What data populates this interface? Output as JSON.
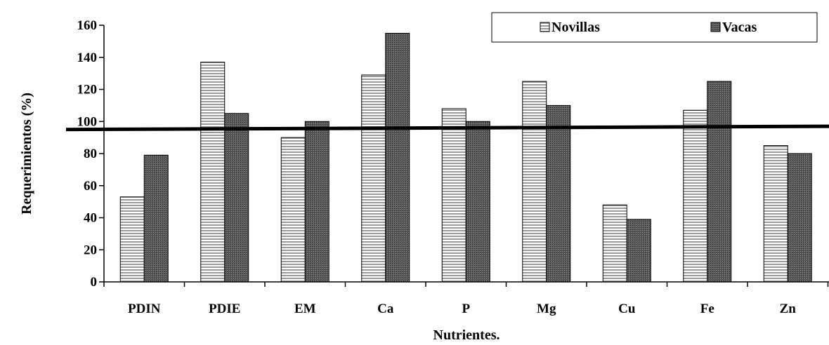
{
  "chart_data": {
    "type": "bar",
    "title": "",
    "xlabel": "Nutrientes.",
    "ylabel": "Requerimientos (%)",
    "ylim": [
      0,
      160
    ],
    "yticks": [
      "0",
      "20",
      "40",
      "60",
      "80",
      "100",
      "120",
      "140",
      "160"
    ],
    "categories": [
      "PDIN",
      "PDIE",
      "EM",
      "Ca",
      "P",
      "Mg",
      "Cu",
      "Fe",
      "Zn"
    ],
    "series": [
      {
        "name": "Novillas",
        "values": [
          53,
          137,
          90,
          129,
          108,
          125,
          48,
          107,
          85
        ],
        "pattern": "horizontal-lines",
        "color": "#9a9a9a"
      },
      {
        "name": "Vacas",
        "values": [
          79,
          105,
          100,
          155,
          100,
          110,
          39,
          125,
          80
        ],
        "pattern": "dense-dots",
        "color": "#4a4a4a"
      }
    ],
    "reference_line": {
      "y_start": 95,
      "y_end": 97,
      "color": "#000000"
    },
    "legend": {
      "position": "top-right",
      "border": true
    },
    "grid": false
  }
}
